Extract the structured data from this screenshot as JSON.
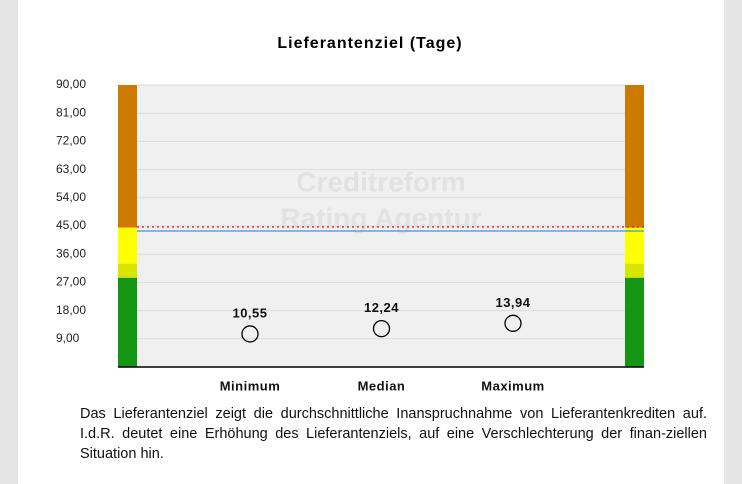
{
  "chart_data": {
    "type": "scatter",
    "title": "Lieferantenziel (Tage)",
    "categories": [
      "Minimum",
      "Median",
      "Maximum"
    ],
    "values": [
      10.55,
      12.24,
      13.94
    ],
    "value_labels": [
      "10,55",
      "12,24",
      "13,94"
    ],
    "ylim": [
      0,
      90
    ],
    "yticks": [
      {
        "value": 9,
        "label": "9,00"
      },
      {
        "value": 18,
        "label": "18,00"
      },
      {
        "value": 27,
        "label": "27,00"
      },
      {
        "value": 36,
        "label": "36,00"
      },
      {
        "value": 45,
        "label": "45,00"
      },
      {
        "value": 54,
        "label": "54,00"
      },
      {
        "value": 63,
        "label": "63,00"
      },
      {
        "value": 72,
        "label": "72,00"
      },
      {
        "value": 81,
        "label": "81,00"
      },
      {
        "value": 90,
        "label": "90,00"
      }
    ],
    "grid": true,
    "bands": [
      {
        "from": 0,
        "to": 28.5,
        "color": "#149614"
      },
      {
        "from": 28.5,
        "to": 33,
        "color": "#d6e600"
      },
      {
        "from": 33,
        "to": 44.5,
        "color": "#ffff00"
      },
      {
        "from": 44.5,
        "to": 90,
        "color": "#cc7a00"
      }
    ],
    "reference_lines": [
      {
        "value": 43.4,
        "color": "#3399dd",
        "style": "solid"
      },
      {
        "value": 44.7,
        "color": "#e02020",
        "style": "dotted"
      }
    ],
    "watermark": [
      "Creditreform",
      "Rating Agentur"
    ]
  },
  "description": "Das Lieferantenziel zeigt die durchschnittliche Inanspruchnahme von Lieferantenkrediten auf. I.d.R. deutet eine Erhöhung des Lieferantenziels, auf eine Verschlechterung der finan-ziellen Situation hin."
}
